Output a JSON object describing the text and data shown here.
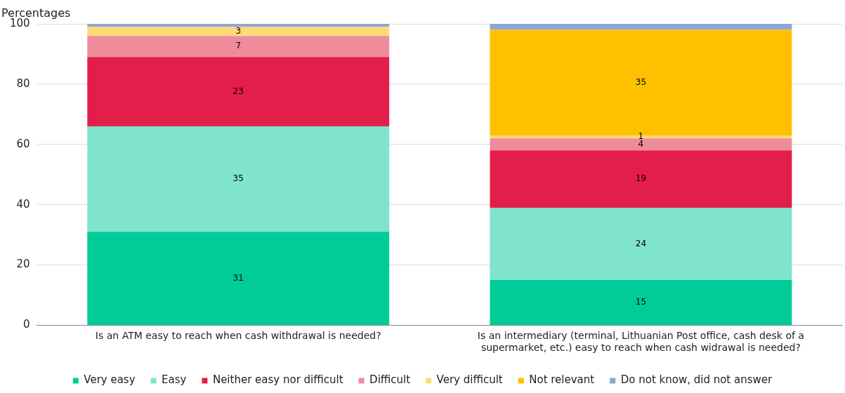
{
  "chart_data": {
    "type": "bar",
    "stacked": true,
    "ylabel": "Percentages",
    "categories": [
      "Is an ATM easy to reach when cash withdrawal is needed?",
      "Is an intermediary (terminal, Lithuanian Post office, cash desk of a supermarket, etc.) easy to reach when cash widrawal is needed?"
    ],
    "series": [
      {
        "name": "Very easy",
        "color": "#00cc99",
        "values": [
          31,
          15
        ],
        "value_labels": [
          "31",
          "15"
        ]
      },
      {
        "name": "Easy",
        "color": "#80e3cc",
        "values": [
          35,
          24
        ],
        "value_labels": [
          "35",
          "24"
        ]
      },
      {
        "name": "Neither easy nor difficult",
        "color": "#e31e4b",
        "values": [
          23,
          19
        ],
        "value_labels": [
          "23",
          "19"
        ]
      },
      {
        "name": "Difficult",
        "color": "#ee8c9c",
        "values": [
          7,
          4
        ],
        "value_labels": [
          "7",
          "4"
        ]
      },
      {
        "name": "Very difficult",
        "color": "#ffd97a",
        "values": [
          3,
          1
        ],
        "value_labels": [
          "3",
          "1"
        ]
      },
      {
        "name": "Not relevant",
        "color": "#ffc000",
        "values": [
          0,
          35
        ],
        "value_labels": [
          null,
          "35"
        ]
      },
      {
        "name": "Do not know, did not answer",
        "color": "#8fa5d8",
        "values": [
          1,
          2
        ],
        "value_labels": [
          null,
          null
        ]
      }
    ],
    "ylim": [
      0,
      100
    ],
    "yticks": [
      0,
      20,
      40,
      60,
      80,
      100
    ],
    "grid": "y",
    "legend": "bottom"
  }
}
